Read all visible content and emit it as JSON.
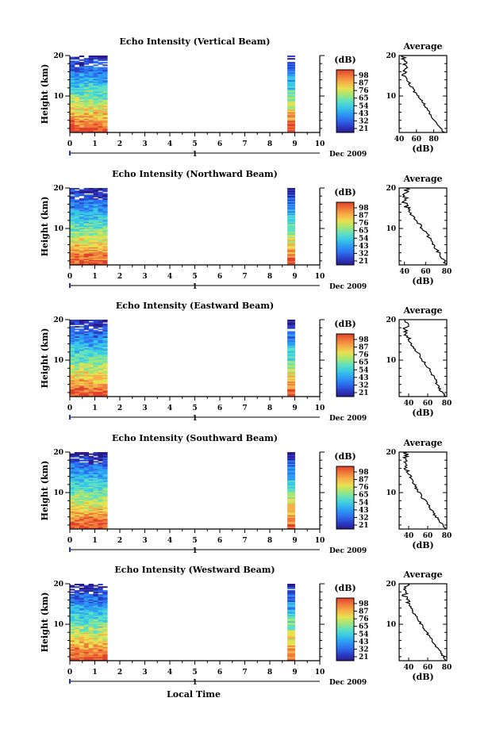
{
  "figure": {
    "x_axis_label": "Local Time",
    "date_label": "Dec 2009",
    "day_label": "1",
    "colorbar_unit": "(dB)",
    "avg_title": "Average",
    "avg_xlabel": "(dB)",
    "y_axis_label": "Height (km)"
  },
  "panels": [
    {
      "title": "Echo Intensity (Vertical Beam)",
      "date_label": "Dec 2009"
    },
    {
      "title": "Echo Intensity (Northward Beam)",
      "date_label": "Dec 2009"
    },
    {
      "title": "Echo Intensity (Eastward Beam)",
      "date_label": "Dec 2009"
    },
    {
      "title": "Echo Intensity (Southward Beam)",
      "date_label": "Dec 2009"
    },
    {
      "title": "Echo Intensity (Westward Beam)",
      "date_label": "Dec 2009"
    }
  ],
  "colorbar": {
    "ticks": [
      "98",
      "87",
      "76",
      "65",
      "54",
      "43",
      "32",
      "21"
    ],
    "colors": [
      "#2a1b8c",
      "#2b3fc9",
      "#2c6ff0",
      "#2d9cf3",
      "#39c8e6",
      "#5fe0c0",
      "#a4e676",
      "#e8e050",
      "#f6b048",
      "#f07a3a",
      "#e0402c"
    ]
  },
  "chart_data": [
    {
      "type": "heatmap",
      "title": "Echo Intensity (Vertical Beam)",
      "xlabel": "",
      "ylabel": "Height (km)",
      "x_range": [
        0,
        10
      ],
      "y_range": [
        1,
        20
      ],
      "x_ticks": [
        0,
        1,
        2,
        3,
        4,
        5,
        6,
        7,
        8,
        9,
        10
      ],
      "y_ticks": [
        10,
        20
      ],
      "data_segments": [
        [
          0,
          1.5
        ],
        [
          8.7,
          9.0
        ]
      ],
      "color_range_db": [
        21,
        98
      ],
      "average_profile": {
        "xlabel": "(dB)",
        "x_range": [
          40,
          95
        ],
        "x_ticks": [
          40,
          60,
          80
        ],
        "height_km": [
          1,
          3,
          5,
          7,
          9,
          11,
          13,
          15,
          17,
          19
        ],
        "db": [
          92,
          85,
          76,
          72,
          66,
          58,
          52,
          46,
          48,
          45
        ]
      }
    },
    {
      "type": "heatmap",
      "title": "Echo Intensity (Northward Beam)",
      "xlabel": "",
      "ylabel": "Height (km)",
      "x_range": [
        0,
        10
      ],
      "y_range": [
        1,
        20
      ],
      "x_ticks": [
        0,
        1,
        2,
        3,
        4,
        5,
        6,
        7,
        8,
        9,
        10
      ],
      "y_ticks": [
        10,
        20
      ],
      "data_segments": [
        [
          0,
          1.5
        ],
        [
          8.7,
          9.0
        ]
      ],
      "color_range_db": [
        21,
        98
      ],
      "average_profile": {
        "xlabel": "(dB)",
        "x_range": [
          35,
          80
        ],
        "x_ticks": [
          40,
          60,
          80
        ],
        "height_km": [
          1,
          3,
          5,
          7,
          9,
          11,
          13,
          15,
          17,
          19
        ],
        "db": [
          79,
          75,
          70,
          66,
          60,
          54,
          48,
          43,
          40,
          42
        ]
      }
    },
    {
      "type": "heatmap",
      "title": "Echo Intensity (Eastward Beam)",
      "xlabel": "",
      "ylabel": "Height (km)",
      "x_range": [
        0,
        10
      ],
      "y_range": [
        1,
        20
      ],
      "x_ticks": [
        0,
        1,
        2,
        3,
        4,
        5,
        6,
        7,
        8,
        9,
        10
      ],
      "y_ticks": [
        10,
        20
      ],
      "data_segments": [
        [
          0,
          1.5
        ],
        [
          8.7,
          9.0
        ]
      ],
      "color_range_db": [
        21,
        98
      ],
      "average_profile": {
        "xlabel": "(dB)",
        "x_range": [
          30,
          80
        ],
        "x_ticks": [
          40,
          60,
          80
        ],
        "height_km": [
          1,
          3,
          5,
          7,
          9,
          11,
          13,
          15,
          17,
          19
        ],
        "db": [
          78,
          72,
          68,
          64,
          58,
          52,
          46,
          40,
          36,
          38
        ]
      }
    },
    {
      "type": "heatmap",
      "title": "Echo Intensity (Southward Beam)",
      "xlabel": "",
      "ylabel": "Height (km)",
      "x_range": [
        0,
        10
      ],
      "y_range": [
        1,
        20
      ],
      "x_ticks": [
        0,
        1,
        2,
        3,
        4,
        5,
        6,
        7,
        8,
        9,
        10
      ],
      "y_ticks": [
        10,
        20
      ],
      "data_segments": [
        [
          0,
          1.5
        ],
        [
          8.7,
          9.0
        ]
      ],
      "color_range_db": [
        21,
        98
      ],
      "average_profile": {
        "xlabel": "(dB)",
        "x_range": [
          30,
          80
        ],
        "x_ticks": [
          40,
          60,
          80
        ],
        "height_km": [
          1,
          3,
          5,
          7,
          9,
          11,
          13,
          15,
          17,
          19
        ],
        "db": [
          79,
          72,
          66,
          60,
          54,
          48,
          44,
          40,
          36,
          37
        ]
      }
    },
    {
      "type": "heatmap",
      "title": "Echo Intensity (Westward Beam)",
      "xlabel": "Local Time",
      "ylabel": "Height (km)",
      "x_range": [
        0,
        10
      ],
      "y_range": [
        1,
        20
      ],
      "x_ticks": [
        0,
        1,
        2,
        3,
        4,
        5,
        6,
        7,
        8,
        9,
        10
      ],
      "y_ticks": [
        10,
        20
      ],
      "data_segments": [
        [
          0,
          1.5
        ],
        [
          8.7,
          9.0
        ]
      ],
      "color_range_db": [
        21,
        98
      ],
      "average_profile": {
        "xlabel": "(dB)",
        "x_range": [
          30,
          80
        ],
        "x_ticks": [
          40,
          60,
          80
        ],
        "height_km": [
          1,
          3,
          5,
          7,
          9,
          11,
          13,
          15,
          17,
          19
        ],
        "db": [
          79,
          74,
          68,
          62,
          56,
          50,
          45,
          40,
          36,
          38
        ]
      }
    }
  ]
}
